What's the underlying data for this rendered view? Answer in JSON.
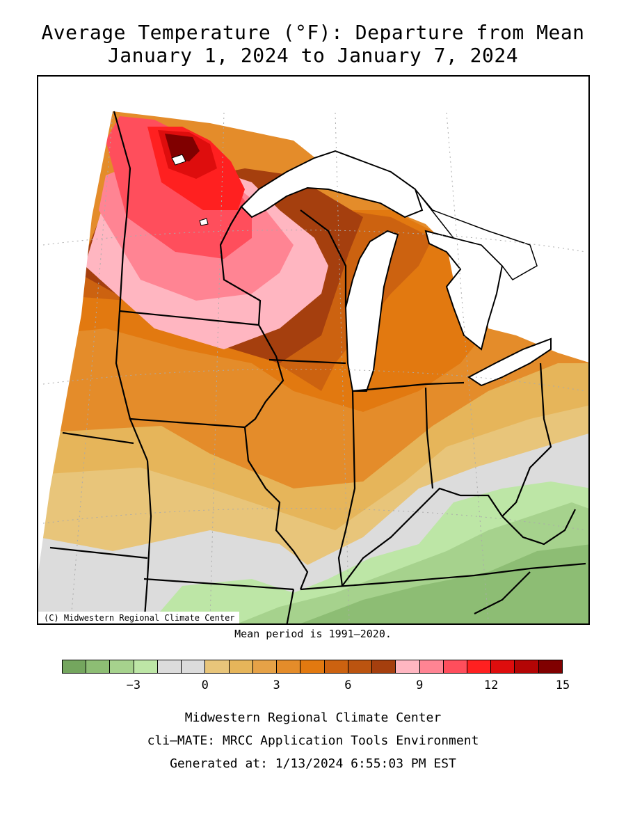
{
  "header": {
    "title_line1": "Average Temperature (°F): Departure from Mean",
    "title_line2": "January 1, 2024 to January 7, 2024"
  },
  "map": {
    "copyright": "(C) Midwestern Regional Climate Center",
    "region": "Upper Midwest (MN, IA, MO, WI, IL, MI, IN, OH, KY)"
  },
  "mean_period": "Mean period is 1991–2020.",
  "legend": {
    "colors": [
      "#74a65e",
      "#8dbd74",
      "#a6d28d",
      "#bde6a6",
      "#dcdcdc",
      "#dcdcdc",
      "#e8c57a",
      "#e6b55a",
      "#e6a247",
      "#e48c2a",
      "#e27910",
      "#cc6210",
      "#bb5410",
      "#a53f0e",
      "#ffb6c1",
      "#ff8493",
      "#ff4e5c",
      "#ff2020",
      "#de0d0d",
      "#b30505",
      "#800000"
    ],
    "ticks": [
      {
        "label": "−3",
        "index": 3
      },
      {
        "label": "0",
        "index": 6
      },
      {
        "label": "3",
        "index": 9
      },
      {
        "label": "6",
        "index": 12
      },
      {
        "label": "9",
        "index": 15
      },
      {
        "label": "12",
        "index": 18
      },
      {
        "label": "15",
        "index": 21
      }
    ]
  },
  "footer": {
    "line1": "Midwestern Regional Climate Center",
    "line2": "cli–MATE: MRCC Application Tools Environment",
    "line3": "Generated at: 1/13/2024 6:55:03 PM EST"
  }
}
